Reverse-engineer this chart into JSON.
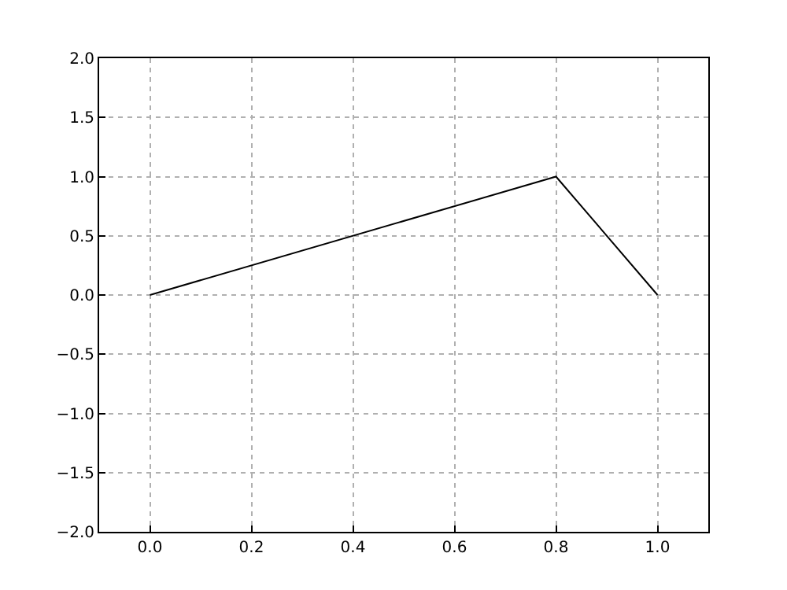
{
  "chart_data": {
    "type": "line",
    "x": [
      0.0,
      0.8,
      1.0
    ],
    "series": [
      {
        "color": "#000000",
        "values": [
          0.0,
          1.0,
          0.0
        ]
      }
    ],
    "xlim": [
      -0.1,
      1.1
    ],
    "ylim": [
      -2.0,
      2.0
    ],
    "xticks": [
      {
        "value": 0.0,
        "label": "0.0"
      },
      {
        "value": 0.2,
        "label": "0.2"
      },
      {
        "value": 0.4,
        "label": "0.4"
      },
      {
        "value": 0.6,
        "label": "0.6"
      },
      {
        "value": 0.8,
        "label": "0.8"
      },
      {
        "value": 1.0,
        "label": "1.0"
      }
    ],
    "yticks": [
      {
        "value": -2.0,
        "label": "−2.0"
      },
      {
        "value": -1.5,
        "label": "−1.5"
      },
      {
        "value": -1.0,
        "label": "−1.0"
      },
      {
        "value": -0.5,
        "label": "−0.5"
      },
      {
        "value": 0.0,
        "label": "0.0"
      },
      {
        "value": 0.5,
        "label": "0.5"
      },
      {
        "value": 1.0,
        "label": "1.0"
      },
      {
        "value": 1.5,
        "label": "1.5"
      },
      {
        "value": 2.0,
        "label": "2.0"
      }
    ],
    "grid": true,
    "marker": "none",
    "line_style": "solid"
  }
}
